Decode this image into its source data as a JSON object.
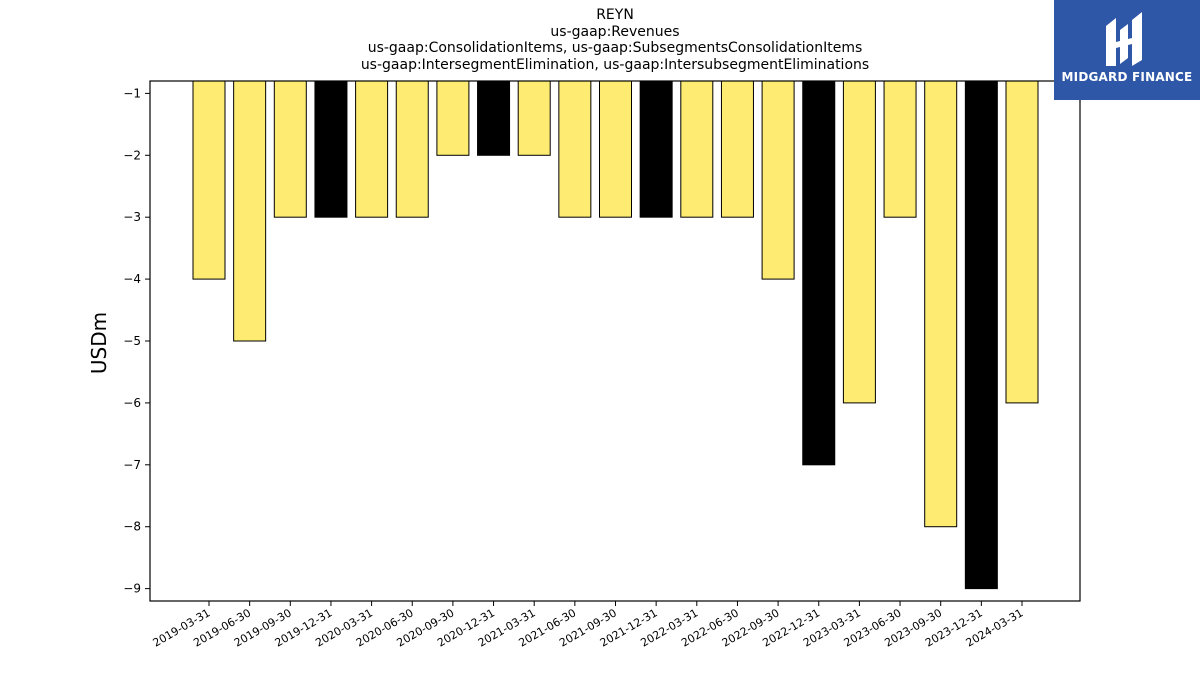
{
  "chart_title_lines": [
    "REYN",
    "us-gaap:Revenues",
    "us-gaap:ConsolidationItems, us-gaap:SubsegmentsConsolidationItems",
    "us-gaap:IntersegmentElimination, us-gaap:IntersubsegmentEliminations"
  ],
  "logo": {
    "text": "MIDGARD FINANCE",
    "background": "#2f57a8"
  },
  "colors": {
    "bar_default": "#fdeb72",
    "bar_highlight": "#000000",
    "bar_edge": "#000000"
  },
  "chart_data": {
    "type": "bar",
    "title": "REYN\nus-gaap:Revenues\nus-gaap:ConsolidationItems, us-gaap:SubsegmentsConsolidationItems\nus-gaap:IntersegmentElimination, us-gaap:IntersubsegmentEliminations",
    "xlabel": "",
    "ylabel": "USDm",
    "categories": [
      "2019-03-31",
      "2019-06-30",
      "2019-09-30",
      "2019-12-31",
      "2020-03-31",
      "2020-06-30",
      "2020-09-30",
      "2020-12-31",
      "2021-03-31",
      "2021-06-30",
      "2021-09-30",
      "2021-12-31",
      "2022-03-31",
      "2022-06-30",
      "2022-09-30",
      "2022-12-31",
      "2023-03-31",
      "2023-06-30",
      "2023-09-30",
      "2023-12-31",
      "2024-03-31"
    ],
    "values": [
      -4,
      -5,
      -3,
      -3,
      -3,
      -3,
      -2,
      -2,
      -2,
      -3,
      -3,
      -3,
      -3,
      -3,
      -4,
      -7,
      -6,
      -3,
      -8,
      -9,
      -6
    ],
    "highlight": [
      false,
      false,
      false,
      true,
      false,
      false,
      false,
      true,
      false,
      false,
      false,
      true,
      false,
      false,
      false,
      true,
      false,
      false,
      false,
      true,
      false
    ],
    "yticks": [
      -1,
      -2,
      -3,
      -4,
      -5,
      -6,
      -7,
      -8,
      -9
    ],
    "ylim": [
      -9.2,
      -0.8
    ],
    "grid": false,
    "legend": "none"
  }
}
